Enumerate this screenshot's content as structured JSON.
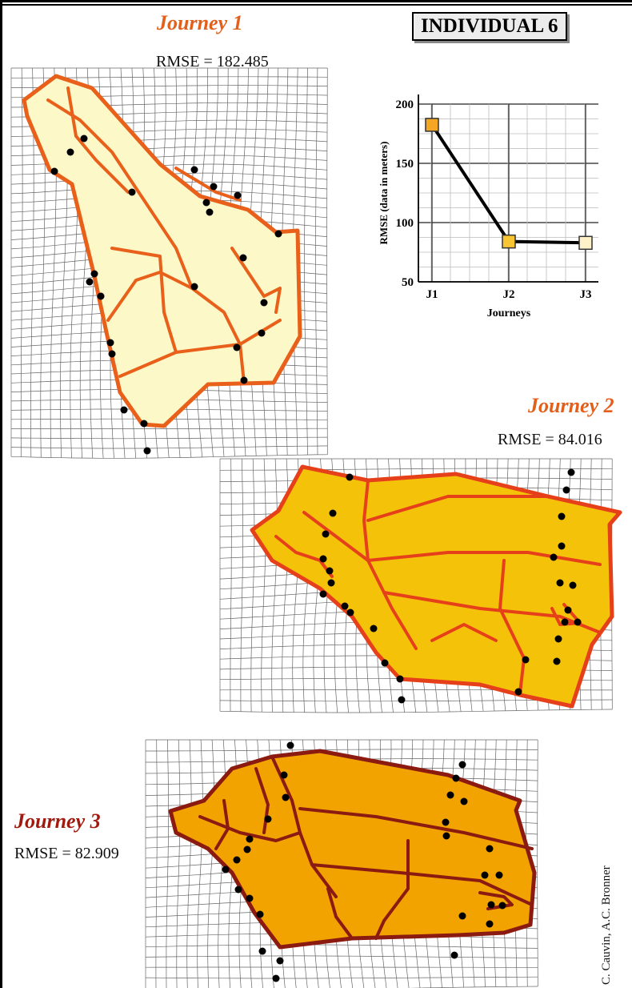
{
  "badge": "INDIVIDUAL 6",
  "journeys": [
    {
      "title": "Journey 1",
      "rmse_text": "RMSE = 182.485"
    },
    {
      "title": "Journey 2",
      "rmse_text": "RMSE = 84.016"
    },
    {
      "title": "Journey 3",
      "rmse_text": "RMSE = 82.909"
    }
  ],
  "colors": {
    "j1_outline": "#e8601a",
    "j1_fill": "#fdf8c8",
    "j2_outline": "#e6401a",
    "j2_fill": "#f5c20a",
    "j3_outline": "#8b1a10",
    "j3_fill": "#f2a300",
    "grid": "#666666",
    "point": "#000000"
  },
  "chart_data": {
    "type": "line",
    "categories": [
      "J1",
      "J2",
      "J3"
    ],
    "values": [
      182.485,
      84.016,
      82.909
    ],
    "ylabel": "RMSE (data in meters)",
    "xlabel": "Journeys",
    "ylim": [
      50,
      200
    ],
    "yticks": [
      50,
      100,
      150,
      200
    ],
    "marker_colors": [
      "#f5a623",
      "#f7c531",
      "#fff1c8"
    ],
    "grid": true
  },
  "credit": "C. Cauvin, A.C. Bronner"
}
